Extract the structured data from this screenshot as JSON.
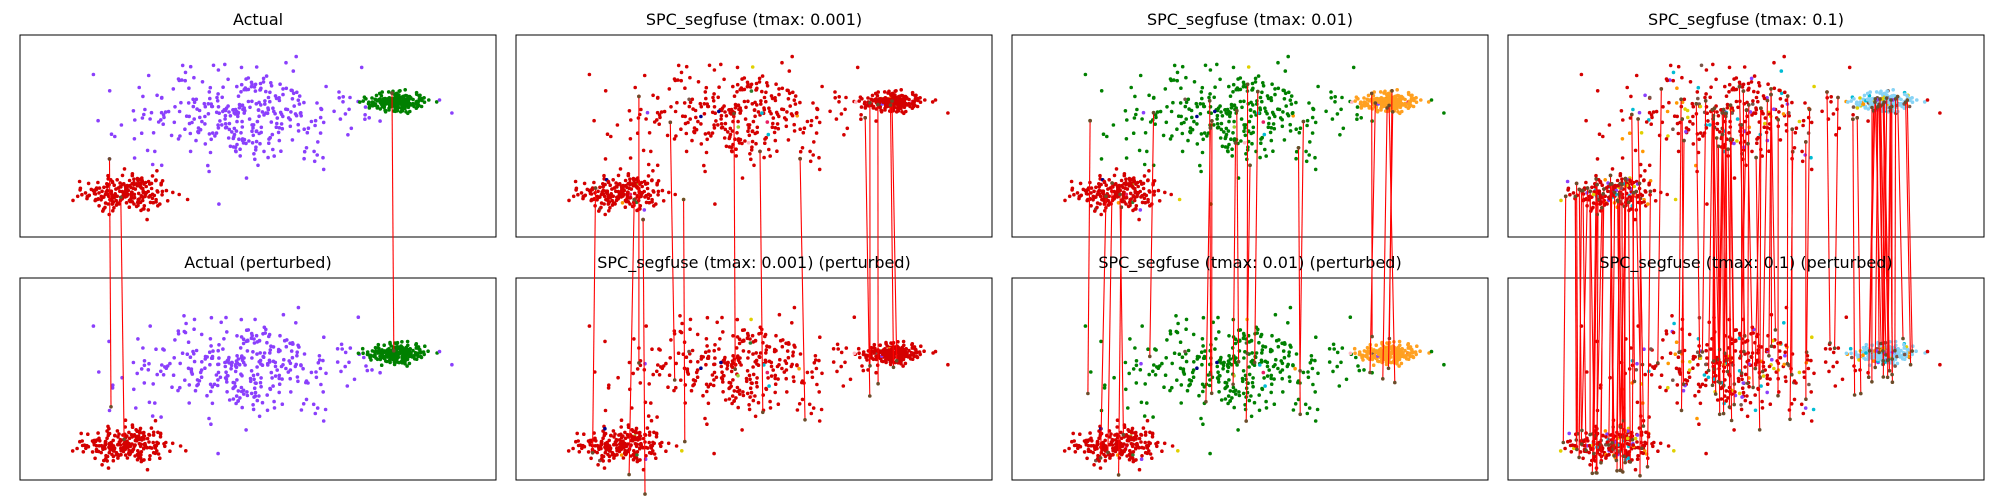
{
  "chart_data": {
    "type": "scatter",
    "description_free": true,
    "titles": [
      "Actual",
      "SPC_segfuse (tmax: 0.001)",
      "SPC_segfuse (tmax: 0.01)",
      "SPC_segfuse (tmax: 0.1)",
      "Actual (perturbed)",
      "SPC_segfuse (tmax: 0.001) (perturbed)",
      "SPC_segfuse (tmax: 0.01) (perturbed)",
      "SPC_segfuse (tmax: 0.1) (perturbed)"
    ],
    "xlim": [
      -4.5,
      7.5
    ],
    "ylim": [
      -4.0,
      4.2
    ],
    "axis_ticks": false,
    "clusters": [
      {
        "center": [
          -1.8,
          -2.2
        ],
        "spread": [
          0.55,
          0.38
        ],
        "count": 220
      },
      {
        "center": [
          1.2,
          1.0
        ],
        "spread": [
          1.35,
          0.95
        ],
        "count": 330
      },
      {
        "center": [
          5.0,
          1.5
        ],
        "spread": [
          0.35,
          0.18
        ],
        "count": 220
      }
    ],
    "panels": [
      {
        "colors": [
          "#d40000",
          "#8a3ffc",
          "#008000"
        ],
        "links": 3
      },
      {
        "colors": [
          "#d40000",
          "#d40000",
          "#d40000"
        ],
        "links": 14
      },
      {
        "colors": [
          "#d40000",
          "#008000",
          "#ffa020"
        ],
        "links": 22
      },
      {
        "colors": [
          "#d40000",
          "#d40000",
          "#87d3f5"
        ],
        "links": 110
      }
    ],
    "outlier_colors": [
      "#e0d000",
      "#ffb6c1",
      "#00bcd4",
      "#00008b",
      "#8a3ffc",
      "#2e7d32",
      "#ff9800",
      "#e91e63",
      "#795548",
      "#9acd32"
    ],
    "link_color": "#ff0000"
  }
}
